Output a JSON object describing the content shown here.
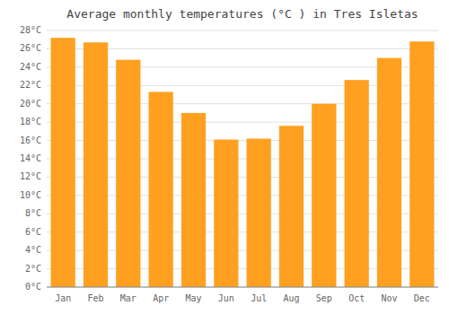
{
  "chart_data": {
    "type": "bar",
    "title": "Average monthly temperatures (°C ) in Tres Isletas",
    "categories": [
      "Jan",
      "Feb",
      "Mar",
      "Apr",
      "May",
      "Jun",
      "Jul",
      "Aug",
      "Sep",
      "Oct",
      "Nov",
      "Dec"
    ],
    "values": [
      27.2,
      26.7,
      24.8,
      21.3,
      19.0,
      16.1,
      16.2,
      17.6,
      20.0,
      22.6,
      25.0,
      26.8
    ],
    "color": "#FFA020",
    "ylim": [
      0,
      28
    ],
    "yticks": [
      {
        "value": 0,
        "label": "0°C"
      },
      {
        "value": 2,
        "label": "2°C"
      },
      {
        "value": 4,
        "label": "4°C"
      },
      {
        "value": 6,
        "label": "6°C"
      },
      {
        "value": 8,
        "label": "8°C"
      },
      {
        "value": 10,
        "label": "10°C"
      },
      {
        "value": 12,
        "label": "12°C"
      },
      {
        "value": 14,
        "label": "14°C"
      },
      {
        "value": 16,
        "label": "16°C"
      },
      {
        "value": 18,
        "label": "18°C"
      },
      {
        "value": 20,
        "label": "20°C"
      },
      {
        "value": 22,
        "label": "22°C"
      },
      {
        "value": 24,
        "label": "24°C"
      },
      {
        "value": 26,
        "label": "26°C"
      },
      {
        "value": 28,
        "label": "28°C"
      }
    ],
    "grid": true
  }
}
